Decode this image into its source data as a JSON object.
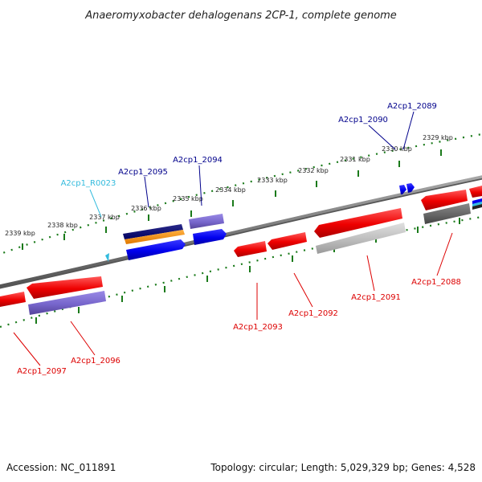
{
  "title": "Anaeromyxobacter dehalogenans 2CP-1, complete genome",
  "footer": {
    "accession": "Accession: NC_011891",
    "summary": "Topology: circular; Length: 5,029,329 bp; Genes: 4,528"
  },
  "colors": {
    "backbone": "#7a7a7a",
    "tick": "#1a7a1a",
    "forward_label": "#00008b",
    "reverse_label": "#dd0000",
    "rna_label": "#33bbdd"
  },
  "scale_labels": [
    "2339 kbp",
    "2338 kbp",
    "2337 kbp",
    "2336 kbp",
    "2335 kbp",
    "2334 kbp",
    "2333 kbp",
    "2332 kbp",
    "2331 kbp",
    "2330 kbp",
    "2329 kbp"
  ],
  "gene_labels": [
    {
      "id": "A2cp1_2089",
      "strand": "forward"
    },
    {
      "id": "A2cp1_2090",
      "strand": "forward"
    },
    {
      "id": "A2cp1_2094",
      "strand": "forward"
    },
    {
      "id": "A2cp1_2095",
      "strand": "forward"
    },
    {
      "id": "A2cp1_R0023",
      "strand": "rna"
    },
    {
      "id": "A2cp1_2088",
      "strand": "reverse"
    },
    {
      "id": "A2cp1_2091",
      "strand": "reverse"
    },
    {
      "id": "A2cp1_2092",
      "strand": "reverse"
    },
    {
      "id": "A2cp1_2093",
      "strand": "reverse"
    },
    {
      "id": "A2cp1_2096",
      "strand": "reverse"
    },
    {
      "id": "A2cp1_2097",
      "strand": "reverse"
    }
  ]
}
